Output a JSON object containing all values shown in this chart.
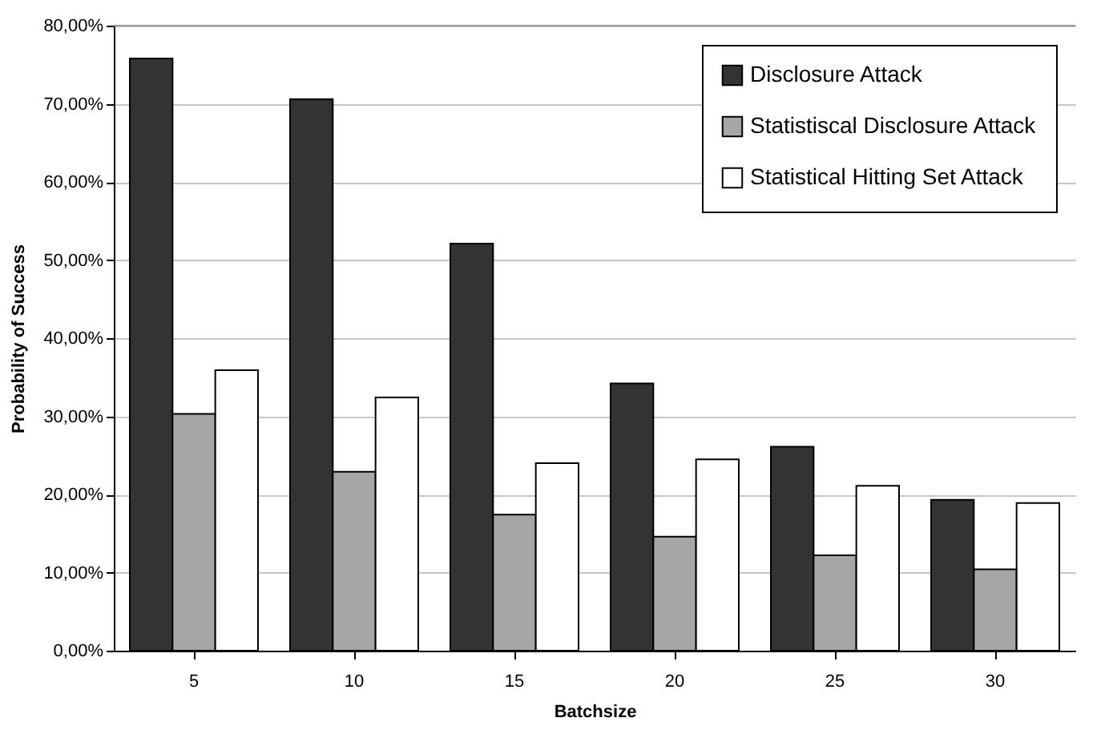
{
  "chart_data": {
    "type": "bar",
    "xlabel": "Batchsize",
    "ylabel": "Probability of Success",
    "categories": [
      "5",
      "10",
      "15",
      "20",
      "25",
      "30"
    ],
    "series": [
      {
        "name": "Disclosure Attack",
        "color": "#333333",
        "values": [
          75.8,
          70.6,
          52.1,
          34.2,
          26.1,
          19.3
        ]
      },
      {
        "name": "Statistiscal Disclosure Attack",
        "color": "#a6a6a6",
        "values": [
          30.3,
          22.9,
          17.4,
          14.6,
          12.2,
          10.4
        ]
      },
      {
        "name": "Statistical Hitting Set Attack",
        "color": "#ffffff",
        "values": [
          35.9,
          32.4,
          24.0,
          24.5,
          21.1,
          18.9
        ]
      }
    ],
    "ylim": [
      0,
      80
    ],
    "yticks": [
      {
        "value": 0,
        "label": "0,00%"
      },
      {
        "value": 10,
        "label": "10,00%"
      },
      {
        "value": 20,
        "label": "20,00%"
      },
      {
        "value": 30,
        "label": "30,00%"
      },
      {
        "value": 40,
        "label": "40,00%"
      },
      {
        "value": 50,
        "label": "50,00%"
      },
      {
        "value": 60,
        "label": "60,00%"
      },
      {
        "value": 70,
        "label": "70,00%"
      },
      {
        "value": 80,
        "label": "80,00%"
      }
    ],
    "grid": "y",
    "legend": "top right"
  }
}
